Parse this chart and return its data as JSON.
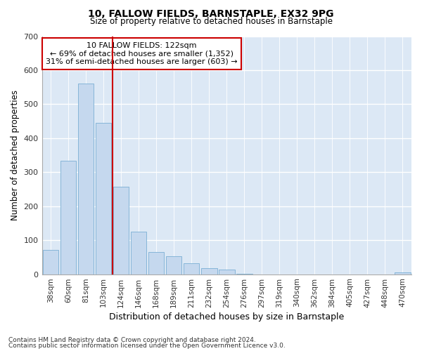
{
  "title1": "10, FALLOW FIELDS, BARNSTAPLE, EX32 9PG",
  "title2": "Size of property relative to detached houses in Barnstaple",
  "xlabel": "Distribution of detached houses by size in Barnstaple",
  "ylabel": "Number of detached properties",
  "annotation_line1": "10 FALLOW FIELDS: 122sqm",
  "annotation_line2": "← 69% of detached houses are smaller (1,352)",
  "annotation_line3": "31% of semi-detached houses are larger (603) →",
  "footer1": "Contains HM Land Registry data © Crown copyright and database right 2024.",
  "footer2": "Contains public sector information licensed under the Open Government Licence v3.0.",
  "bar_color": "#c5d8ee",
  "bar_edge_color": "#7aafd4",
  "background_color": "#dce8f5",
  "grid_color": "#ffffff",
  "ref_line_color": "#cc0000",
  "ref_line_index": 4,
  "categories": [
    "38sqm",
    "60sqm",
    "81sqm",
    "103sqm",
    "124sqm",
    "146sqm",
    "168sqm",
    "189sqm",
    "211sqm",
    "232sqm",
    "254sqm",
    "276sqm",
    "297sqm",
    "319sqm",
    "340sqm",
    "362sqm",
    "384sqm",
    "405sqm",
    "427sqm",
    "448sqm",
    "470sqm"
  ],
  "values": [
    72,
    333,
    560,
    445,
    257,
    125,
    65,
    52,
    32,
    18,
    13,
    1,
    0,
    0,
    0,
    0,
    0,
    0,
    0,
    0,
    5
  ],
  "ylim": [
    0,
    700
  ],
  "yticks": [
    0,
    100,
    200,
    300,
    400,
    500,
    600,
    700
  ],
  "fig_width": 6.0,
  "fig_height": 5.0,
  "dpi": 100
}
